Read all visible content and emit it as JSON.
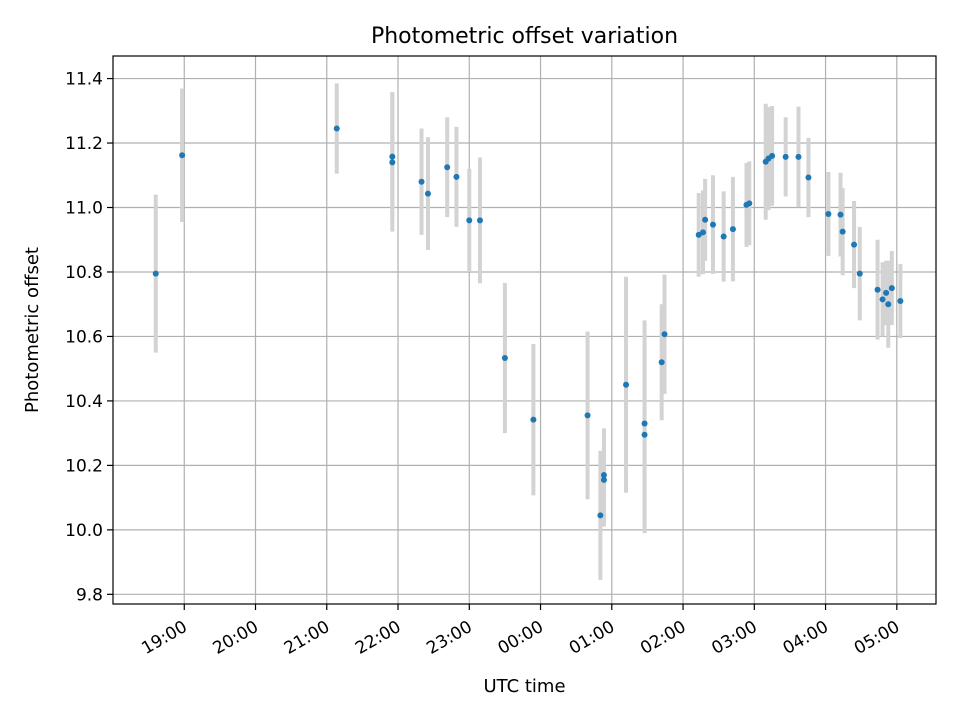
{
  "chart_data": {
    "type": "scatter",
    "title": "Photometric offset variation",
    "xlabel": "UTC time",
    "ylabel": "Photometric offset",
    "x_tick_labels": [
      "19:00",
      "20:00",
      "21:00",
      "22:00",
      "23:00",
      "00:00",
      "01:00",
      "02:00",
      "03:00",
      "04:00",
      "05:00"
    ],
    "x_ticks_hours": [
      19,
      20,
      21,
      22,
      23,
      24,
      25,
      26,
      27,
      28,
      29
    ],
    "xlim_hours": [
      18.0,
      29.55
    ],
    "y_ticks": [
      9.8,
      10.0,
      10.2,
      10.4,
      10.6,
      10.8,
      11.0,
      11.2,
      11.4
    ],
    "ylim": [
      9.77,
      11.47
    ],
    "grid": true,
    "colors": {
      "marker": "#1f77b4",
      "errorbar": "#d3d3d3",
      "grid": "#b0b0b0"
    },
    "series": [
      {
        "points": [
          {
            "t": 18.6,
            "y": 10.795,
            "err": 0.245
          },
          {
            "t": 18.97,
            "y": 11.162,
            "err": 0.207
          },
          {
            "t": 21.14,
            "y": 11.245,
            "err": 0.14
          },
          {
            "t": 21.92,
            "y": 11.158,
            "err": 0.2
          },
          {
            "t": 21.92,
            "y": 11.14,
            "err": 0.215
          },
          {
            "t": 22.33,
            "y": 11.08,
            "err": 0.165
          },
          {
            "t": 22.42,
            "y": 11.043,
            "err": 0.175
          },
          {
            "t": 22.69,
            "y": 11.125,
            "err": 0.155
          },
          {
            "t": 22.82,
            "y": 11.095,
            "err": 0.155
          },
          {
            "t": 23.0,
            "y": 10.96,
            "err": 0.16
          },
          {
            "t": 23.15,
            "y": 10.96,
            "err": 0.195
          },
          {
            "t": 23.5,
            "y": 10.533,
            "err": 0.233
          },
          {
            "t": 23.9,
            "y": 10.342,
            "err": 0.235
          },
          {
            "t": 24.66,
            "y": 10.355,
            "err": 0.26
          },
          {
            "t": 24.84,
            "y": 10.045,
            "err": 0.2
          },
          {
            "t": 24.89,
            "y": 10.17,
            "err": 0.145
          },
          {
            "t": 24.89,
            "y": 10.155,
            "err": 0.145
          },
          {
            "t": 25.2,
            "y": 10.45,
            "err": 0.335
          },
          {
            "t": 25.46,
            "y": 10.33,
            "err": 0.32
          },
          {
            "t": 25.46,
            "y": 10.295,
            "err": 0.305
          },
          {
            "t": 25.7,
            "y": 10.52,
            "err": 0.18
          },
          {
            "t": 25.74,
            "y": 10.607,
            "err": 0.185
          },
          {
            "t": 26.22,
            "y": 10.915,
            "err": 0.13
          },
          {
            "t": 26.28,
            "y": 10.923,
            "err": 0.13
          },
          {
            "t": 26.31,
            "y": 10.962,
            "err": 0.127
          },
          {
            "t": 26.42,
            "y": 10.947,
            "err": 0.153
          },
          {
            "t": 26.57,
            "y": 10.91,
            "err": 0.14
          },
          {
            "t": 26.7,
            "y": 10.933,
            "err": 0.162
          },
          {
            "t": 26.89,
            "y": 11.008,
            "err": 0.13
          },
          {
            "t": 26.93,
            "y": 11.013,
            "err": 0.13
          },
          {
            "t": 27.16,
            "y": 11.142,
            "err": 0.18
          },
          {
            "t": 27.2,
            "y": 11.152,
            "err": 0.16
          },
          {
            "t": 27.25,
            "y": 11.16,
            "err": 0.155
          },
          {
            "t": 27.44,
            "y": 11.157,
            "err": 0.123
          },
          {
            "t": 27.62,
            "y": 11.157,
            "err": 0.156
          },
          {
            "t": 27.76,
            "y": 11.093,
            "err": 0.123
          },
          {
            "t": 28.04,
            "y": 10.98,
            "err": 0.13
          },
          {
            "t": 28.21,
            "y": 10.978,
            "err": 0.13
          },
          {
            "t": 28.24,
            "y": 10.925,
            "err": 0.135
          },
          {
            "t": 28.4,
            "y": 10.885,
            "err": 0.135
          },
          {
            "t": 28.48,
            "y": 10.795,
            "err": 0.145
          },
          {
            "t": 28.73,
            "y": 10.745,
            "err": 0.155
          },
          {
            "t": 28.8,
            "y": 10.715,
            "err": 0.115
          },
          {
            "t": 28.85,
            "y": 10.735,
            "err": 0.1
          },
          {
            "t": 28.88,
            "y": 10.7,
            "err": 0.135
          },
          {
            "t": 28.93,
            "y": 10.75,
            "err": 0.115
          },
          {
            "t": 29.05,
            "y": 10.71,
            "err": 0.115
          }
        ]
      }
    ]
  }
}
